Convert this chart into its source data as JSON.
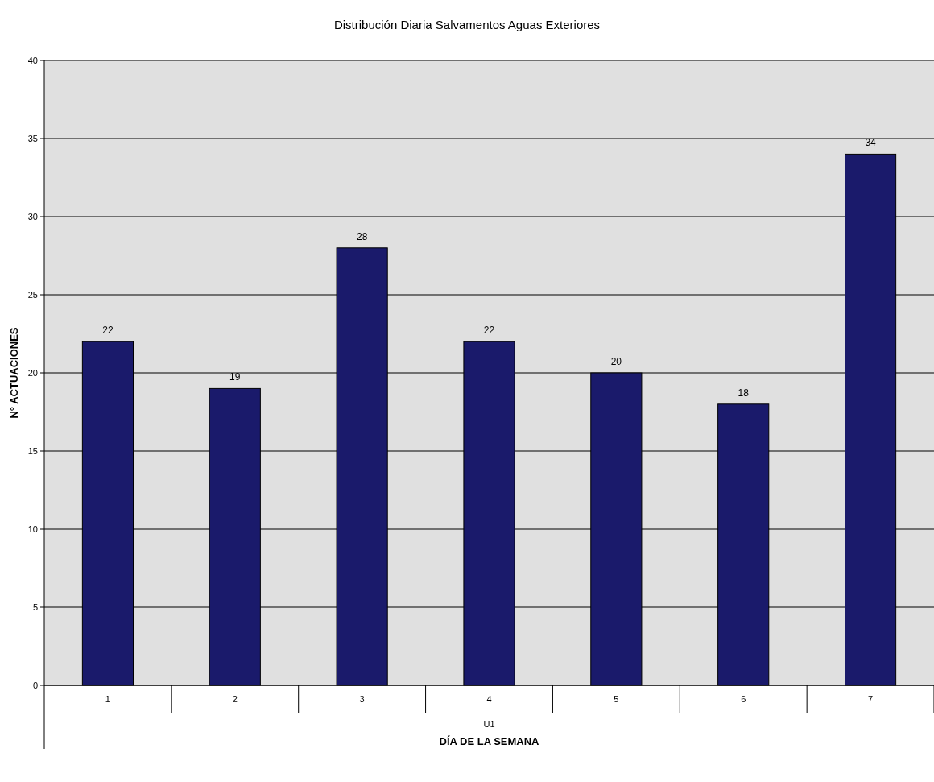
{
  "chart_data": {
    "type": "bar",
    "title": "Distribución Diaria Salvamentos Aguas Exteriores",
    "xlabel": "DÍA DE LA SEMANA",
    "ylabel": "N° ACTUACIONES",
    "categories": [
      "1",
      "2",
      "3",
      "4",
      "5",
      "6",
      "7"
    ],
    "values": [
      22,
      19,
      28,
      22,
      20,
      18,
      34
    ],
    "color": "#1a1a6b",
    "ylim": [
      0,
      40
    ],
    "yticks": [
      0,
      5,
      10,
      15,
      20,
      25,
      30,
      35,
      40
    ],
    "grid": "y",
    "data_labels": true,
    "annotations": [
      "U1"
    ]
  }
}
